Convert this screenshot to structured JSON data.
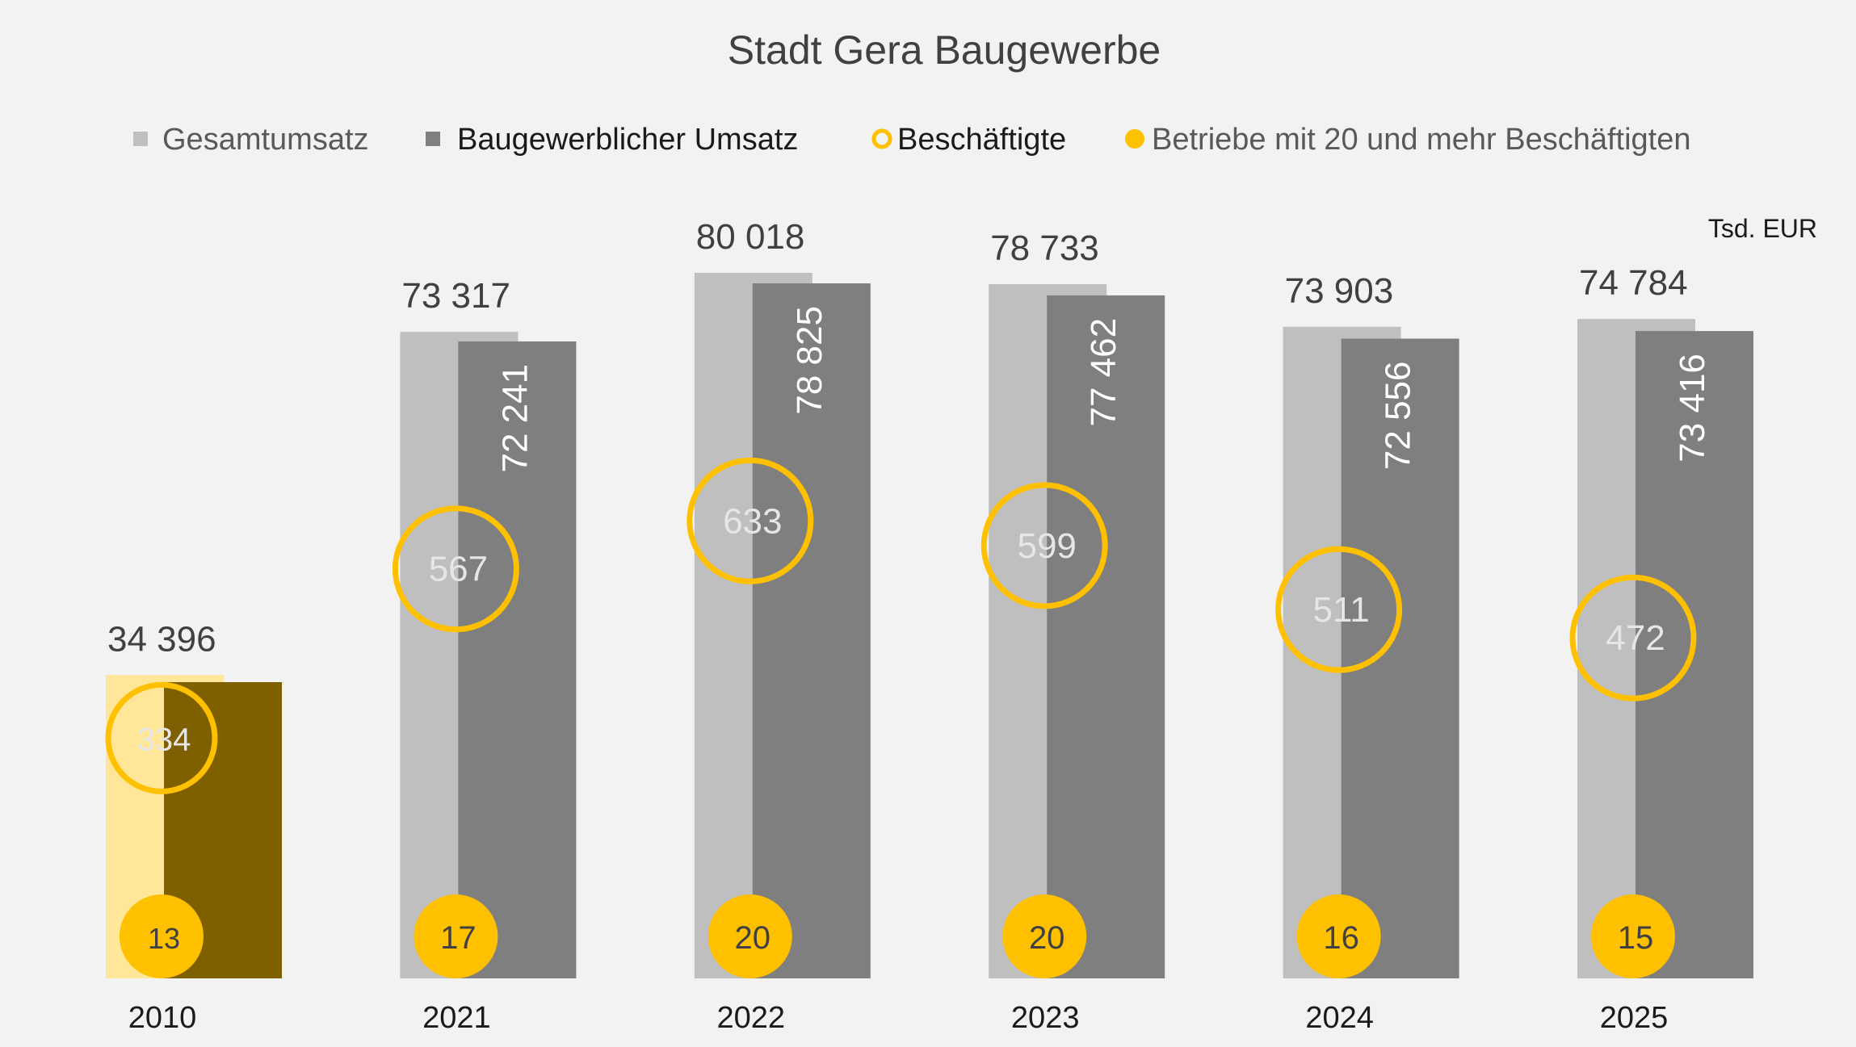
{
  "chart_data": {
    "type": "bar",
    "title": "Stadt Gera Baugewerbe",
    "unit_label": "Tsd. EUR",
    "categories": [
      "2010",
      "2021",
      "2022",
      "2023",
      "2024",
      "2025"
    ],
    "series": [
      {
        "name": "Gesamtumsatz",
        "values": [
          34396,
          73317,
          80018,
          78733,
          73903,
          74784
        ],
        "value_labels": [
          "34 396",
          "73 317",
          "80 018",
          "78 733",
          "73 903",
          "74 784"
        ]
      },
      {
        "name": "Baugewerblicher Umsatz",
        "values": [
          33600,
          72241,
          78825,
          77462,
          72556,
          73416
        ],
        "value_labels": [
          "",
          "72 241",
          "78 825",
          "77 462",
          "72 556",
          "73 416"
        ]
      },
      {
        "name": "Beschäftigte",
        "values": [
          334,
          567,
          633,
          599,
          511,
          472
        ],
        "value_labels": [
          "334",
          "567",
          "633",
          "599",
          "511",
          "472"
        ]
      },
      {
        "name": "Betriebe mit 20 und mehr Beschäftigten",
        "values": [
          13,
          17,
          20,
          20,
          16,
          15
        ],
        "value_labels": [
          "13",
          "17",
          "20",
          "20",
          "16",
          "15"
        ]
      }
    ],
    "highlight_category": "2010",
    "ylim": [
      0,
      85000
    ],
    "grid": false,
    "legend_position": "top",
    "colors": {
      "gesamt": "#bfbfbf",
      "bau": "#7f7f7f",
      "gesamt_highlight": "#ffe699",
      "bau_highlight": "#7f6000",
      "accent": "#ffc000",
      "background": "#f2f2f2",
      "legend_text_gray": "#595959",
      "legend_text_dark": "#1a1a1a"
    }
  }
}
